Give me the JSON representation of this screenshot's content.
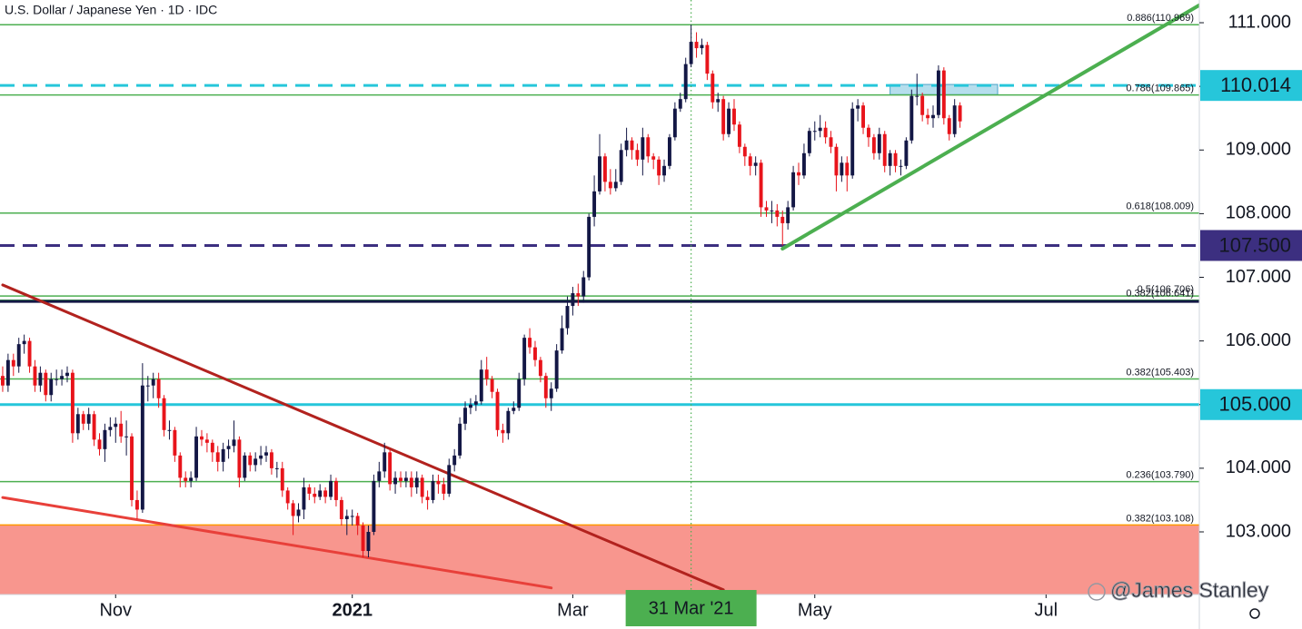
{
  "chart_data": {
    "type": "candlestick",
    "title": "U.S. Dollar / Japanese Yen · 1D · IDC",
    "up_color": "#131745",
    "down_color": "#e8141b",
    "x": [
      "2020-10-02",
      "2020-10-05",
      "2020-10-06",
      "2020-10-07",
      "2020-10-08",
      "2020-10-09",
      "2020-10-12",
      "2020-10-13",
      "2020-10-14",
      "2020-10-15",
      "2020-10-16",
      "2020-10-19",
      "2020-10-20",
      "2020-10-21",
      "2020-10-22",
      "2020-10-23",
      "2020-10-26",
      "2020-10-27",
      "2020-10-28",
      "2020-10-29",
      "2020-10-30",
      "2020-11-02",
      "2020-11-03",
      "2020-11-04",
      "2020-11-05",
      "2020-11-06",
      "2020-11-09",
      "2020-11-10",
      "2020-11-11",
      "2020-11-12",
      "2020-11-13",
      "2020-11-16",
      "2020-11-17",
      "2020-11-18",
      "2020-11-19",
      "2020-11-20",
      "2020-11-23",
      "2020-11-24",
      "2020-11-25",
      "2020-11-26",
      "2020-11-27",
      "2020-11-30",
      "2020-12-01",
      "2020-12-02",
      "2020-12-03",
      "2020-12-04",
      "2020-12-07",
      "2020-12-08",
      "2020-12-09",
      "2020-12-10",
      "2020-12-11",
      "2020-12-14",
      "2020-12-15",
      "2020-12-16",
      "2020-12-17",
      "2020-12-18",
      "2020-12-21",
      "2020-12-22",
      "2020-12-23",
      "2020-12-24",
      "2020-12-25",
      "2020-12-28",
      "2020-12-29",
      "2020-12-30",
      "2020-12-31",
      "2021-01-01",
      "2021-01-04",
      "2021-01-05",
      "2021-01-06",
      "2021-01-07",
      "2021-01-08",
      "2021-01-11",
      "2021-01-12",
      "2021-01-13",
      "2021-01-14",
      "2021-01-15",
      "2021-01-18",
      "2021-01-19",
      "2021-01-20",
      "2021-01-21",
      "2021-01-22",
      "2021-01-25",
      "2021-01-26",
      "2021-01-27",
      "2021-01-28",
      "2021-01-29",
      "2021-02-01",
      "2021-02-02",
      "2021-02-03",
      "2021-02-04",
      "2021-02-05",
      "2021-02-08",
      "2021-02-09",
      "2021-02-10",
      "2021-02-11",
      "2021-02-12",
      "2021-02-15",
      "2021-02-16",
      "2021-02-17",
      "2021-02-18",
      "2021-02-19",
      "2021-02-22",
      "2021-02-23",
      "2021-02-24",
      "2021-02-25",
      "2021-02-26",
      "2021-03-01",
      "2021-03-02",
      "2021-03-03",
      "2021-03-04",
      "2021-03-05",
      "2021-03-08",
      "2021-03-09",
      "2021-03-10",
      "2021-03-11",
      "2021-03-12",
      "2021-03-15",
      "2021-03-16",
      "2021-03-17",
      "2021-03-18",
      "2021-03-19",
      "2021-03-22",
      "2021-03-23",
      "2021-03-24",
      "2021-03-25",
      "2021-03-26",
      "2021-03-29",
      "2021-03-30",
      "2021-03-31",
      "2021-04-01",
      "2021-04-02",
      "2021-04-05",
      "2021-04-06",
      "2021-04-07",
      "2021-04-08",
      "2021-04-09",
      "2021-04-12",
      "2021-04-13",
      "2021-04-14",
      "2021-04-15",
      "2021-04-16",
      "2021-04-19",
      "2021-04-20",
      "2021-04-21",
      "2021-04-22",
      "2021-04-23",
      "2021-04-26",
      "2021-04-27",
      "2021-04-28",
      "2021-04-29",
      "2021-04-30",
      "2021-05-03",
      "2021-05-04",
      "2021-05-05",
      "2021-05-06",
      "2021-05-07",
      "2021-05-10",
      "2021-05-11",
      "2021-05-12",
      "2021-05-13",
      "2021-05-14",
      "2021-05-17",
      "2021-05-18",
      "2021-05-19",
      "2021-05-20",
      "2021-05-21",
      "2021-05-24",
      "2021-05-25",
      "2021-05-26",
      "2021-05-27",
      "2021-05-28",
      "2021-05-31",
      "2021-06-01",
      "2021-06-02",
      "2021-06-03",
      "2021-06-04",
      "2021-06-07",
      "2021-06-08",
      "2021-06-09"
    ],
    "open": [
      105.45,
      105.3,
      105.7,
      105.6,
      105.95,
      106.0,
      105.6,
      105.3,
      105.5,
      105.15,
      105.4,
      105.4,
      105.45,
      105.5,
      104.55,
      104.85,
      104.7,
      104.85,
      104.45,
      104.3,
      104.6,
      104.65,
      104.7,
      104.5,
      104.5,
      103.5,
      103.35,
      105.3,
      105.3,
      105.4,
      105.1,
      104.6,
      104.6,
      104.2,
      103.85,
      103.8,
      103.85,
      104.5,
      104.45,
      104.4,
      104.25,
      104.1,
      104.3,
      104.35,
      104.45,
      103.85,
      104.2,
      104.05,
      104.15,
      104.2,
      104.25,
      104.0,
      104.0,
      103.65,
      103.45,
      103.25,
      103.35,
      103.7,
      103.6,
      103.55,
      103.65,
      103.55,
      103.8,
      103.5,
      103.2,
      103.25,
      103.25,
      103.1,
      102.7,
      103.0,
      103.8,
      103.95,
      104.25,
      103.75,
      103.85,
      103.8,
      103.85,
      103.7,
      103.85,
      103.55,
      103.5,
      103.8,
      103.75,
      103.6,
      104.05,
      104.2,
      104.7,
      104.95,
      105.0,
      105.05,
      105.55,
      105.4,
      105.2,
      104.6,
      104.55,
      104.9,
      104.95,
      105.4,
      106.05,
      105.9,
      105.7,
      105.45,
      105.1,
      105.25,
      105.85,
      106.2,
      106.55,
      106.75,
      106.7,
      107.0,
      107.95,
      108.35,
      108.9,
      108.5,
      108.4,
      108.5,
      109.0,
      109.15,
      109.0,
      108.85,
      109.2,
      108.9,
      108.85,
      108.6,
      108.75,
      109.2,
      109.65,
      109.8,
      110.35,
      110.7,
      110.6,
      110.65,
      110.2,
      109.75,
      109.8,
      109.25,
      109.65,
      109.4,
      109.05,
      108.9,
      108.75,
      108.8,
      108.1,
      108.05,
      108.05,
      107.95,
      107.85,
      108.1,
      108.65,
      108.6,
      108.95,
      109.3,
      109.3,
      109.35,
      109.2,
      109.05,
      108.6,
      108.8,
      108.6,
      109.65,
      109.7,
      109.35,
      109.2,
      108.95,
      109.25,
      108.75,
      108.95,
      108.75,
      108.75,
      109.15,
      109.85,
      109.85,
      109.55,
      109.5,
      109.55,
      110.25,
      109.5,
      109.25,
      109.7
    ],
    "high": [
      105.6,
      105.8,
      105.8,
      106.05,
      106.1,
      106.05,
      105.7,
      105.6,
      105.55,
      105.5,
      105.55,
      105.55,
      105.6,
      105.55,
      104.95,
      104.9,
      104.95,
      104.9,
      104.55,
      104.7,
      104.8,
      104.8,
      104.9,
      104.75,
      104.55,
      103.65,
      105.65,
      105.45,
      105.5,
      105.5,
      105.15,
      104.75,
      104.65,
      104.25,
      103.95,
      103.95,
      104.65,
      104.6,
      104.55,
      104.45,
      104.35,
      104.4,
      104.45,
      104.75,
      104.5,
      104.25,
      104.25,
      104.25,
      104.35,
      104.35,
      104.3,
      104.1,
      104.1,
      103.7,
      103.5,
      103.45,
      103.85,
      103.75,
      103.7,
      103.75,
      103.7,
      103.9,
      103.85,
      103.55,
      103.35,
      103.35,
      103.3,
      103.15,
      103.1,
      103.9,
      104.1,
      104.4,
      104.3,
      103.95,
      103.95,
      103.95,
      103.95,
      103.95,
      103.9,
      103.65,
      103.9,
      103.9,
      103.85,
      104.15,
      104.3,
      104.8,
      105.05,
      105.1,
      105.15,
      105.7,
      105.75,
      105.45,
      105.25,
      104.7,
      104.95,
      105.05,
      105.5,
      106.1,
      106.2,
      106.0,
      105.75,
      105.5,
      105.35,
      105.95,
      106.4,
      106.7,
      106.85,
      106.9,
      107.1,
      108.0,
      108.6,
      109.25,
      108.95,
      108.7,
      108.7,
      109.1,
      109.35,
      109.2,
      109.1,
      109.35,
      109.25,
      108.95,
      108.9,
      108.85,
      109.25,
      109.75,
      109.9,
      110.45,
      110.97,
      110.85,
      110.75,
      110.7,
      110.25,
      109.9,
      109.85,
      109.75,
      109.8,
      109.45,
      109.1,
      108.95,
      108.9,
      108.85,
      108.2,
      108.2,
      108.15,
      108.05,
      108.2,
      108.75,
      108.8,
      109.1,
      109.35,
      109.45,
      109.55,
      109.45,
      109.3,
      109.1,
      108.9,
      108.9,
      109.75,
      109.8,
      109.75,
      109.4,
      109.25,
      109.35,
      109.3,
      109.0,
      109.0,
      108.85,
      109.2,
      109.95,
      110.2,
      109.9,
      109.65,
      109.7,
      110.33,
      110.3,
      109.55,
      109.8,
      109.75
    ],
    "low": [
      105.2,
      105.2,
      105.45,
      105.5,
      105.8,
      105.5,
      105.2,
      105.2,
      105.05,
      105.05,
      105.3,
      105.3,
      105.35,
      104.4,
      104.45,
      104.6,
      104.6,
      104.35,
      104.2,
      104.1,
      104.5,
      104.4,
      104.4,
      104.2,
      103.4,
      103.2,
      103.3,
      105.05,
      105.1,
      104.95,
      104.5,
      104.45,
      104.1,
      103.7,
      103.7,
      103.7,
      103.8,
      104.35,
      104.25,
      104.1,
      103.95,
      103.95,
      104.15,
      104.25,
      103.7,
      103.8,
      103.95,
      103.95,
      104.05,
      104.1,
      103.9,
      103.85,
      103.55,
      103.35,
      102.95,
      103.15,
      103.2,
      103.5,
      103.45,
      103.5,
      103.45,
      103.5,
      103.4,
      103.1,
      102.95,
      103.1,
      102.95,
      102.6,
      102.6,
      102.95,
      103.7,
      103.85,
      103.65,
      103.6,
      103.7,
      103.7,
      103.55,
      103.6,
      103.45,
      103.35,
      103.45,
      103.6,
      103.5,
      103.55,
      103.95,
      104.15,
      104.6,
      104.85,
      104.9,
      105.0,
      105.3,
      105.1,
      104.5,
      104.4,
      104.45,
      104.85,
      104.9,
      105.3,
      105.8,
      105.6,
      105.35,
      104.95,
      104.9,
      105.2,
      105.8,
      106.1,
      106.4,
      106.55,
      106.6,
      106.95,
      107.8,
      108.3,
      108.35,
      108.3,
      108.35,
      108.45,
      108.9,
      108.85,
      108.75,
      108.6,
      108.8,
      108.7,
      108.45,
      108.5,
      108.7,
      109.15,
      109.6,
      109.75,
      110.3,
      110.45,
      110.5,
      110.1,
      109.65,
      109.6,
      109.15,
      109.2,
      109.3,
      108.95,
      108.75,
      108.6,
      108.6,
      107.95,
      107.95,
      107.85,
      107.8,
      107.5,
      107.75,
      108.05,
      108.45,
      108.55,
      108.9,
      109.15,
      109.2,
      109.1,
      108.95,
      108.35,
      108.5,
      108.35,
      108.55,
      109.45,
      109.25,
      109.05,
      108.85,
      108.85,
      108.65,
      108.6,
      108.65,
      108.6,
      108.7,
      109.1,
      109.7,
      109.45,
      109.4,
      109.35,
      109.5,
      109.4,
      109.15,
      109.2,
      109.35
    ],
    "close": [
      105.3,
      105.7,
      105.6,
      105.95,
      106.0,
      105.6,
      105.3,
      105.5,
      105.15,
      105.4,
      105.4,
      105.45,
      105.5,
      104.55,
      104.85,
      104.7,
      104.85,
      104.45,
      104.3,
      104.6,
      104.65,
      104.7,
      104.5,
      104.5,
      103.5,
      103.35,
      105.3,
      105.3,
      105.4,
      105.1,
      104.6,
      104.6,
      104.2,
      103.85,
      103.8,
      103.85,
      104.5,
      104.45,
      104.4,
      104.25,
      104.1,
      104.3,
      104.35,
      104.45,
      103.85,
      104.2,
      104.05,
      104.15,
      104.2,
      104.25,
      104.0,
      104.0,
      103.65,
      103.45,
      103.25,
      103.35,
      103.7,
      103.6,
      103.55,
      103.65,
      103.55,
      103.8,
      103.5,
      103.2,
      103.25,
      103.25,
      103.1,
      102.7,
      103.0,
      103.8,
      103.95,
      104.25,
      103.75,
      103.85,
      103.8,
      103.85,
      103.7,
      103.85,
      103.55,
      103.5,
      103.8,
      103.75,
      103.6,
      104.05,
      104.2,
      104.7,
      104.95,
      105.0,
      105.05,
      105.55,
      105.4,
      105.2,
      104.6,
      104.55,
      104.9,
      104.95,
      105.4,
      106.05,
      105.9,
      105.7,
      105.45,
      105.1,
      105.25,
      105.85,
      106.2,
      106.55,
      106.75,
      106.7,
      107.0,
      107.95,
      108.35,
      108.9,
      108.5,
      108.4,
      108.5,
      109.0,
      109.15,
      109.0,
      108.85,
      109.2,
      108.9,
      108.85,
      108.6,
      108.75,
      109.2,
      109.65,
      109.8,
      110.35,
      110.7,
      110.6,
      110.65,
      110.2,
      109.75,
      109.8,
      109.25,
      109.65,
      109.4,
      109.05,
      108.9,
      108.75,
      108.8,
      108.1,
      108.05,
      108.05,
      107.95,
      107.85,
      108.1,
      108.65,
      108.6,
      108.95,
      109.3,
      109.3,
      109.35,
      109.2,
      109.05,
      108.6,
      108.8,
      108.6,
      109.65,
      109.7,
      109.35,
      109.2,
      108.95,
      109.25,
      108.75,
      108.95,
      108.75,
      108.75,
      109.15,
      109.85,
      109.85,
      109.55,
      109.5,
      109.55,
      110.25,
      109.5,
      109.25,
      109.7,
      109.45
    ],
    "xlim": [
      "2020-10-02",
      "2021-08-11"
    ],
    "xticks": [
      {
        "value": "2020-11-02",
        "label": "Nov"
      },
      {
        "value": "2021-01-01",
        "label": "2021",
        "bold": true
      },
      {
        "value": "2021-03-01",
        "label": "Mar"
      },
      {
        "value": "2021-05-03",
        "label": "May"
      },
      {
        "value": "2021-07-01",
        "label": "Jul"
      }
    ],
    "ylim": [
      102.016,
      111.357
    ],
    "yticks": [
      {
        "value": 103,
        "label": "103.000"
      },
      {
        "value": 104,
        "label": "104.000"
      },
      {
        "value": 105,
        "label": "105.000"
      },
      {
        "value": 106,
        "label": "106.000"
      },
      {
        "value": 107,
        "label": "107.000"
      },
      {
        "value": 108,
        "label": "108.000"
      },
      {
        "value": 109,
        "label": "109.000"
      },
      {
        "value": 110,
        "label": "110.000"
      },
      {
        "value": 111,
        "label": "111.000"
      }
    ],
    "grid": false,
    "zone": {
      "top": 103.108,
      "color": "#f8968e"
    },
    "levels": [
      {
        "value": 110.969,
        "label": "0.886(110.969)",
        "color": "#4caf50",
        "style": "fib"
      },
      {
        "value": 109.865,
        "label": "0.786(109.865)",
        "color": "#4caf50",
        "style": "fib"
      },
      {
        "value": 108.009,
        "label": "0.618(108.009)",
        "color": "#4caf50",
        "style": "fib"
      },
      {
        "value": 106.706,
        "label": "0.5(106.706)",
        "color": "#4caf50",
        "style": "fib"
      },
      {
        "value": 106.641,
        "label": "0.382(106.641)",
        "color": "#4caf50",
        "style": "fib"
      },
      {
        "value": 105.403,
        "label": "0.382(105.403)",
        "color": "#4caf50",
        "style": "fib"
      },
      {
        "value": 103.79,
        "label": "0.236(103.790)",
        "color": "#4caf50",
        "style": "fib"
      },
      {
        "value": 103.108,
        "label": "0.382(103.108)",
        "color": "#ff9800",
        "style": "fib"
      },
      {
        "value": 110.014,
        "label": "110.014",
        "color": "#26c6da",
        "style": "tag",
        "dashed": true,
        "text_color": "#131722"
      },
      {
        "value": 107.5,
        "label": "107.500",
        "color": "#3c2f80",
        "style": "tag",
        "dashed": true,
        "text_color": "#ffffff"
      },
      {
        "value": 105,
        "label": "105.000",
        "color": "#26c6da",
        "style": "tag",
        "dashed": false,
        "text_color": "#131722"
      },
      {
        "value": 106.62,
        "color": "#131745",
        "style": "plain"
      }
    ],
    "trendlines": [
      {
        "points": [
          [
            "2020-10-02",
            106.88
          ],
          [
            "2021-04-08",
            102.09
          ]
        ],
        "color": "#b2221e",
        "width": 3
      },
      {
        "points": [
          [
            "2020-10-02",
            103.54
          ],
          [
            "2021-02-23",
            102.12
          ]
        ],
        "color": "#e8403a",
        "width": 3
      },
      {
        "points": [
          [
            "2021-04-23",
            107.45
          ],
          [
            "2021-08-11",
            111.3
          ]
        ],
        "color": "#4caf50",
        "width": 4
      }
    ],
    "rectangle": {
      "x": [
        "2021-05-21",
        "2021-06-18"
      ],
      "y": [
        109.87,
        110.03
      ],
      "color": "#a8d8ea"
    },
    "crosshair": {
      "x": "2021-03-31",
      "label": "31 Mar '21",
      "color": "#4caf50"
    },
    "watermark": "@James Stanley"
  }
}
